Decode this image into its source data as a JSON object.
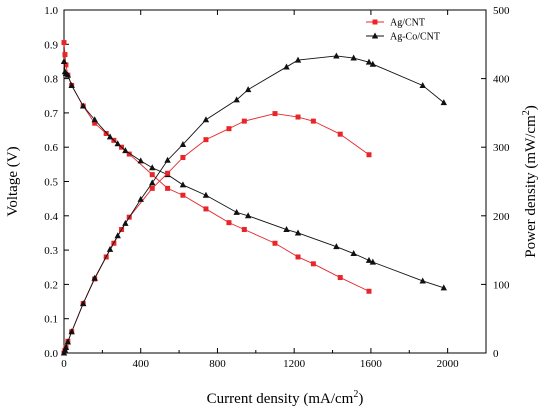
{
  "chart_data": {
    "type": "line",
    "title": "",
    "xlabel": "Current density (mA/cm",
    "xlabel_sup": "2",
    "xlabel_suffix": ")",
    "ylabel": "Voltage (V)",
    "y2label": "Power density (mW/cm",
    "y2label_sup": "2",
    "y2label_suffix": ")",
    "xlim": [
      0,
      2200
    ],
    "ylim": [
      0,
      1.0
    ],
    "y2lim": [
      0,
      500
    ],
    "xticks": [
      "0",
      "400",
      "800",
      "1200",
      "1600",
      "2000"
    ],
    "yticks": [
      "0.0",
      "0.1",
      "0.2",
      "0.3",
      "0.4",
      "0.5",
      "0.6",
      "0.7",
      "0.8",
      "0.9",
      "1.0"
    ],
    "y2ticks": [
      "0",
      "100",
      "200",
      "300",
      "400",
      "500"
    ],
    "grid": false,
    "legend_position": "top-right",
    "series": [
      {
        "name": "Ag/CNT",
        "color": "#e8262a",
        "marker": "square",
        "axis": "left",
        "kind": "polarization",
        "x": [
          0,
          5,
          10,
          20,
          40,
          100,
          160,
          220,
          260,
          300,
          340,
          460,
          540,
          620,
          740,
          860,
          940,
          1100,
          1220,
          1300,
          1440,
          1590
        ],
        "y": [
          0.905,
          0.87,
          0.84,
          0.81,
          0.78,
          0.72,
          0.67,
          0.64,
          0.62,
          0.6,
          0.58,
          0.52,
          0.48,
          0.46,
          0.42,
          0.38,
          0.36,
          0.32,
          0.28,
          0.26,
          0.22,
          0.18
        ]
      },
      {
        "name": "Ag-Co/CNT",
        "color": "#111111",
        "marker": "triangle",
        "axis": "left",
        "kind": "polarization",
        "x": [
          0,
          5,
          10,
          20,
          40,
          100,
          160,
          240,
          280,
          320,
          400,
          460,
          540,
          620,
          740,
          900,
          960,
          1160,
          1220,
          1420,
          1510,
          1590,
          1610,
          1870,
          1980
        ],
        "y": [
          0.85,
          0.82,
          0.815,
          0.81,
          0.78,
          0.72,
          0.68,
          0.63,
          0.61,
          0.59,
          0.56,
          0.54,
          0.52,
          0.49,
          0.46,
          0.41,
          0.4,
          0.36,
          0.35,
          0.31,
          0.29,
          0.27,
          0.265,
          0.21,
          0.19
        ]
      },
      {
        "name": "Ag/CNT",
        "color": "#e8262a",
        "marker": "square",
        "axis": "right",
        "kind": "power",
        "x": [
          0,
          5,
          10,
          20,
          40,
          100,
          160,
          220,
          260,
          300,
          340,
          460,
          540,
          620,
          740,
          860,
          940,
          1100,
          1220,
          1300,
          1440,
          1590
        ],
        "y": [
          0,
          4,
          8,
          17,
          31,
          72,
          108,
          140,
          160,
          180,
          198,
          240,
          262,
          285,
          311,
          327,
          338,
          349,
          344,
          338,
          319,
          289
        ]
      },
      {
        "name": "Ag-Co/CNT",
        "color": "#111111",
        "marker": "triangle",
        "axis": "right",
        "kind": "power",
        "x": [
          0,
          5,
          10,
          20,
          40,
          100,
          160,
          240,
          280,
          320,
          400,
          460,
          540,
          620,
          740,
          900,
          960,
          1160,
          1220,
          1420,
          1510,
          1590,
          1610,
          1870,
          1980
        ],
        "y": [
          0,
          4,
          8,
          16,
          31,
          72,
          109,
          151,
          171,
          189,
          224,
          248,
          281,
          304,
          340,
          369,
          384,
          417,
          427,
          433,
          430,
          424,
          421,
          390,
          365
        ]
      }
    ]
  }
}
